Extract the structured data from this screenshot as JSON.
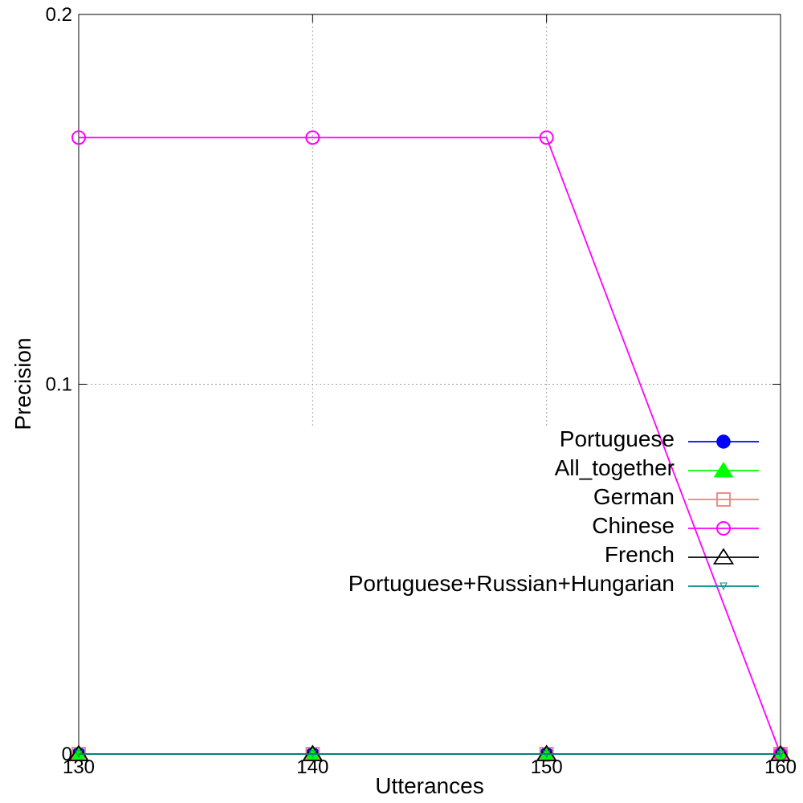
{
  "chart_data": {
    "type": "line",
    "xlabel": "Utterances",
    "ylabel": "Precision",
    "xlim": [
      130,
      160
    ],
    "ylim": [
      0,
      0.2
    ],
    "xticks": [
      130,
      140,
      150,
      160
    ],
    "xtick_labels": [
      "130",
      "140",
      "150",
      "160"
    ],
    "yticks": [
      0,
      0.1,
      0.2
    ],
    "ytick_labels": [
      "0",
      "0.1",
      "0.2"
    ],
    "grid": true,
    "legend_position": "right",
    "series": [
      {
        "name": "Portuguese",
        "x": [
          130,
          140,
          150,
          160
        ],
        "values": [
          0,
          0,
          0,
          0
        ],
        "color": "#0000ff",
        "marker": "filled-circle"
      },
      {
        "name": "All_together",
        "x": [
          130,
          140,
          150,
          160
        ],
        "values": [
          0,
          0,
          0,
          0
        ],
        "color": "#00ff00",
        "marker": "filled-triangle"
      },
      {
        "name": "German",
        "x": [
          130,
          140,
          150,
          160
        ],
        "values": [
          0,
          0,
          0,
          0
        ],
        "color": "#f08080",
        "marker": "open-square"
      },
      {
        "name": "Chinese",
        "x": [
          130,
          140,
          150,
          160
        ],
        "values": [
          0.1667,
          0.1667,
          0.1667,
          0
        ],
        "color": "#ff00ff",
        "marker": "open-circle"
      },
      {
        "name": "French",
        "x": [
          130,
          140,
          150,
          160
        ],
        "values": [
          0,
          0,
          0,
          0
        ],
        "color": "#000000",
        "marker": "open-triangle"
      },
      {
        "name": "Portuguese+Russian+Hungarian",
        "x": [
          130,
          140,
          150,
          160
        ],
        "values": [
          0,
          0,
          0,
          0
        ],
        "color": "#008b8b",
        "marker": "small-down-triangle"
      }
    ]
  }
}
